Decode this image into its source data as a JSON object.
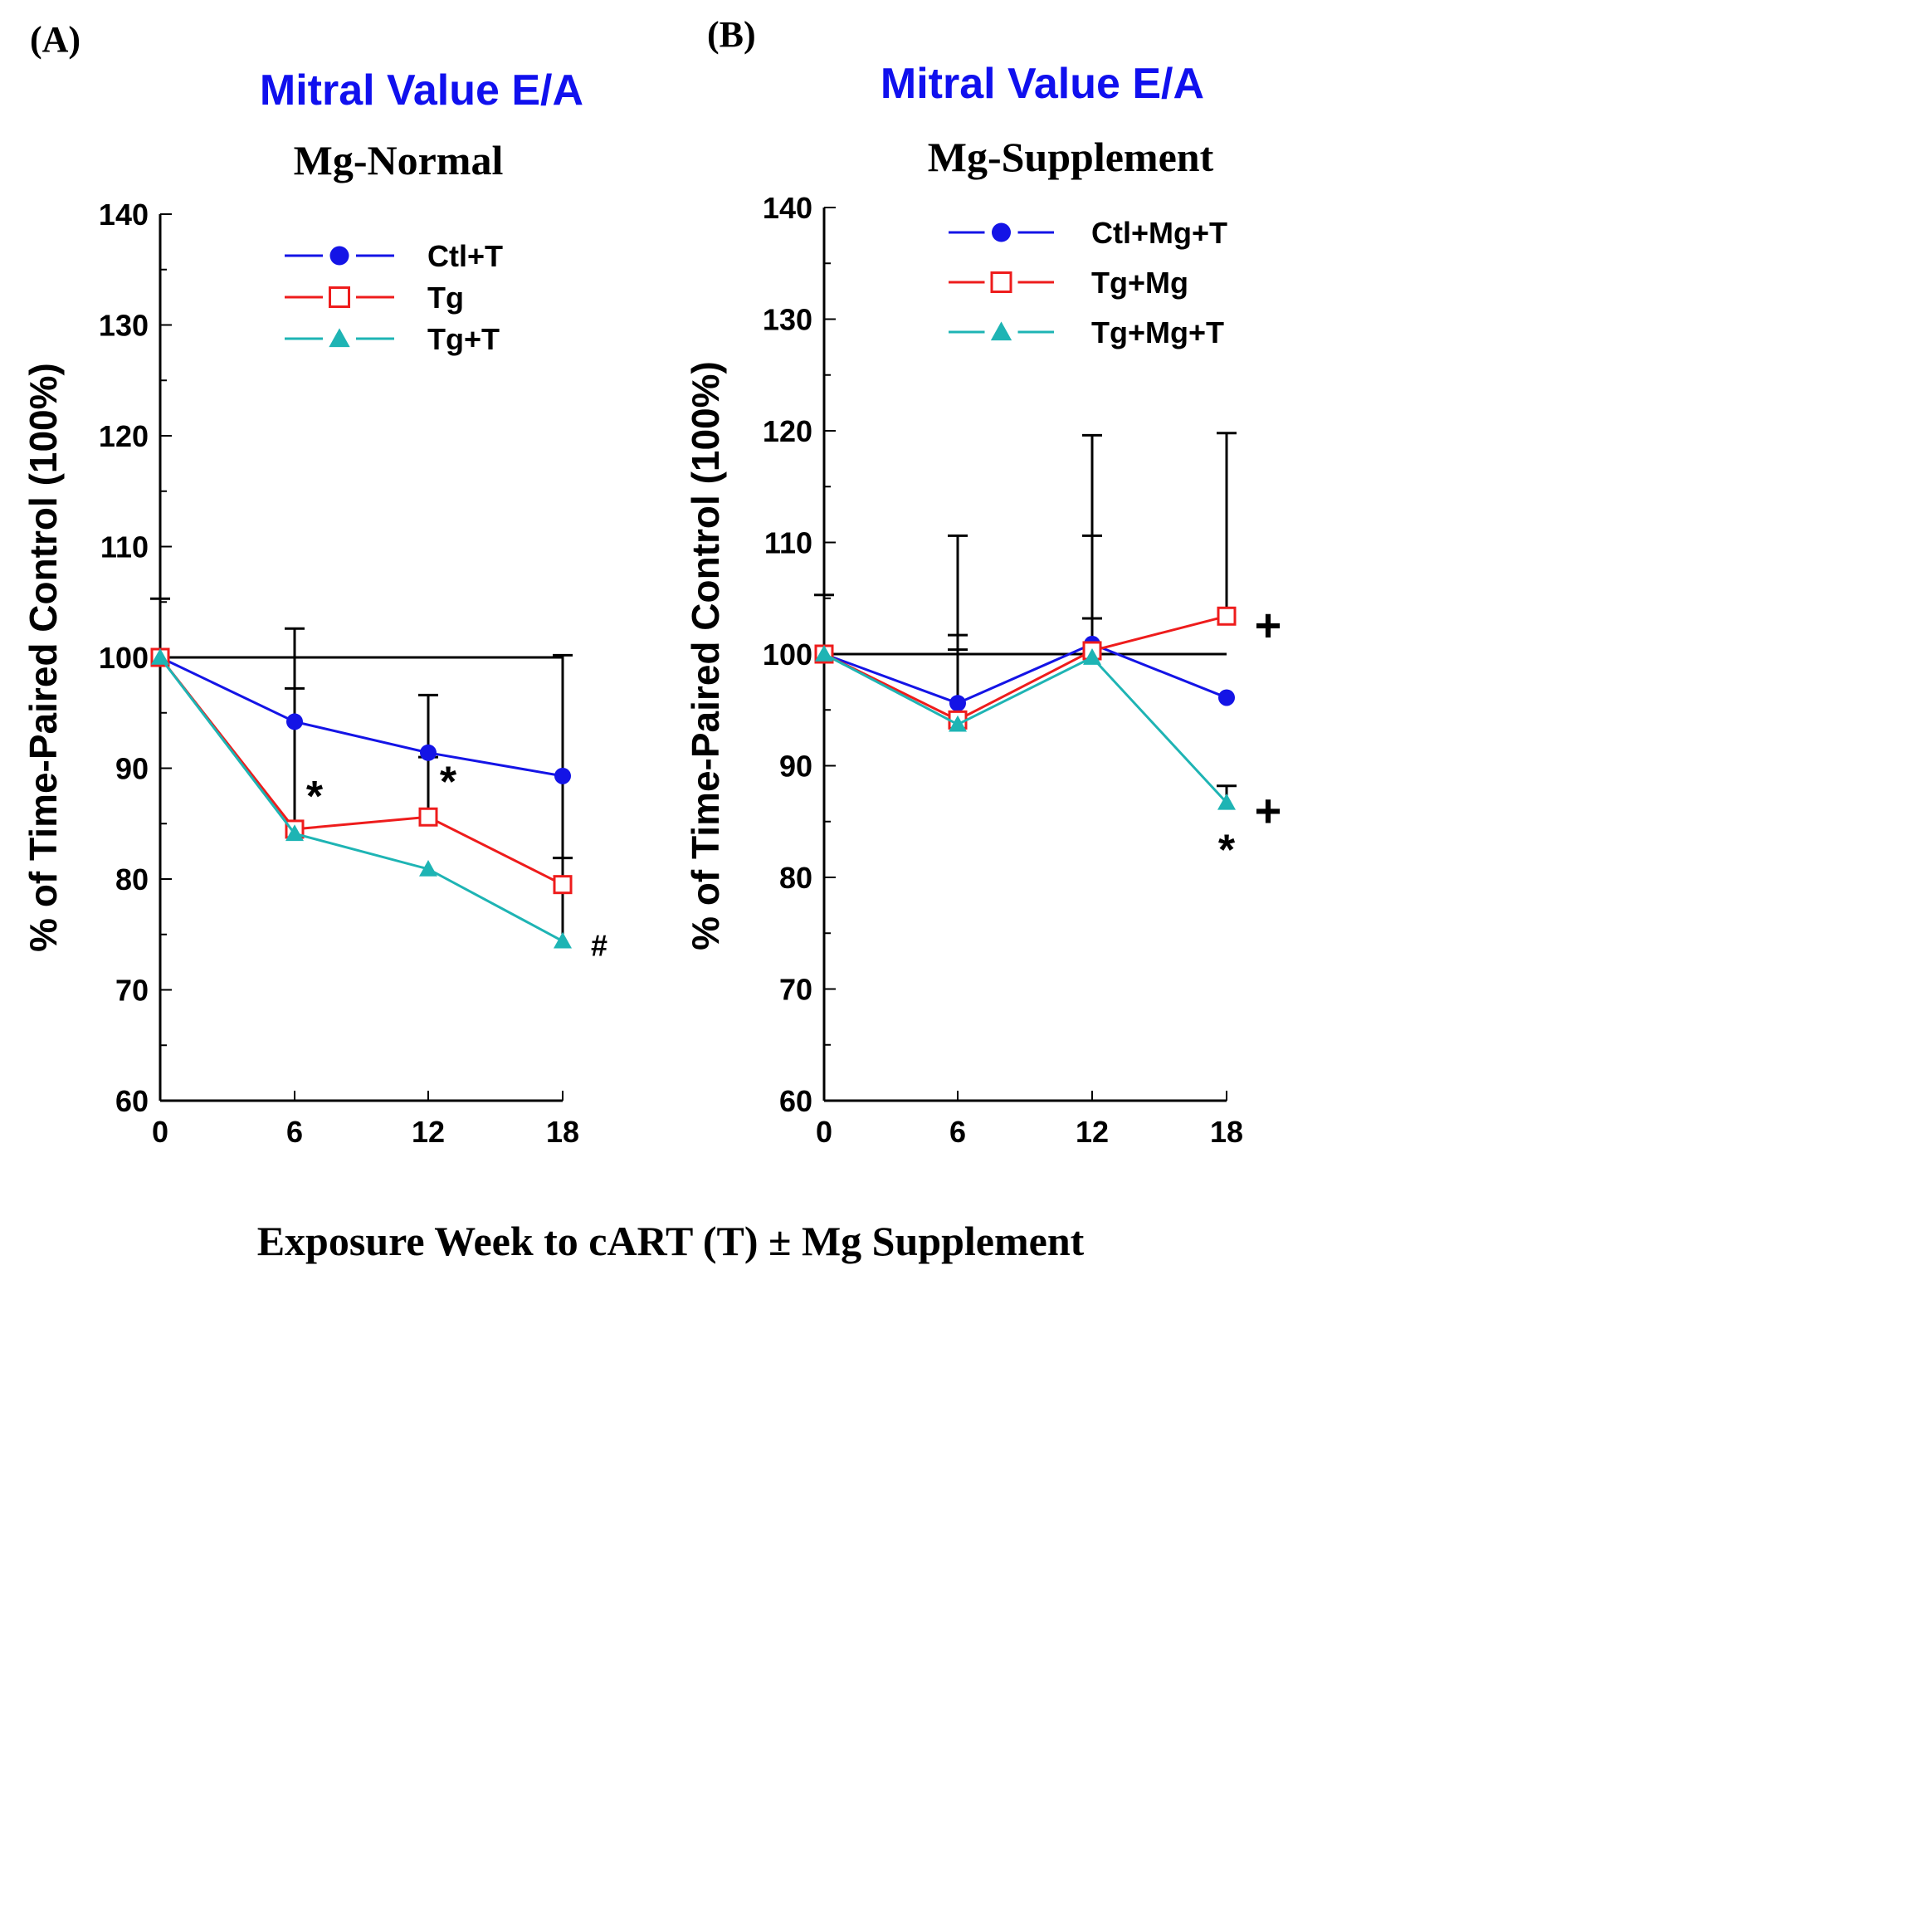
{
  "figure": {
    "shared_xlabel": "Exposure Week to cART (T) ± Mg Supplement"
  },
  "colors": {
    "blue": "#1414e6",
    "red": "#ee1c1c",
    "teal": "#1eb4b4",
    "black": "#000000"
  },
  "chart_data": [
    {
      "panel_label": "(A)",
      "type": "line",
      "title": "Mitral Value E/A",
      "subtitle": "Mg-Normal",
      "xlabel": "",
      "ylabel": "% of Time-Paired Control (100%)",
      "x": [
        0,
        6,
        12,
        18
      ],
      "x_ticks": [
        "0",
        "6",
        "12",
        "18"
      ],
      "y_ticks": [
        "60",
        "70",
        "80",
        "90",
        "100",
        "110",
        "120",
        "130",
        "140"
      ],
      "ylim": [
        60,
        140
      ],
      "reference_line": 100,
      "legend_position": "top-right",
      "series": [
        {
          "name": "Ctl+T",
          "color": "blue",
          "marker": "circle",
          "values": [
            100,
            94.2,
            91.4,
            89.3
          ],
          "error_upper": [
            105.3,
            102.6,
            96.6,
            null
          ]
        },
        {
          "name": "Tg",
          "color": "red",
          "marker": "square-open",
          "values": [
            100,
            84.5,
            85.6,
            79.5
          ],
          "error_upper": [
            null,
            97.2,
            91.0,
            100.2
          ]
        },
        {
          "name": "Tg+T",
          "color": "teal",
          "marker": "triangle",
          "values": [
            100,
            84.1,
            80.9,
            74.4
          ],
          "error_upper": [
            null,
            null,
            null,
            81.9
          ]
        }
      ],
      "annotations": [
        {
          "text": "*",
          "x": 6,
          "y": 87.5,
          "size": 52
        },
        {
          "text": "*",
          "x": 12,
          "y": 88.8,
          "size": 52
        },
        {
          "text": "#",
          "x": 18,
          "y": 74.0,
          "size": 36
        }
      ]
    },
    {
      "panel_label": "(B)",
      "type": "line",
      "title": "Mitral Value E/A",
      "subtitle": "Mg-Supplement",
      "xlabel": "",
      "ylabel": "% of Time-Paired Control (100%)",
      "x": [
        0,
        6,
        12,
        18
      ],
      "x_ticks": [
        "0",
        "6",
        "12",
        "18"
      ],
      "y_ticks": [
        "60",
        "70",
        "80",
        "90",
        "100",
        "110",
        "120",
        "130",
        "140"
      ],
      "ylim": [
        60,
        140
      ],
      "reference_line": 100,
      "legend_position": "top-right",
      "series": [
        {
          "name": "Ctl+Mg+T",
          "color": "blue",
          "marker": "circle",
          "values": [
            100,
            95.6,
            100.9,
            96.1
          ],
          "error_upper": [
            105.3,
            101.7,
            110.6,
            null
          ]
        },
        {
          "name": "Tg+Mg",
          "color": "red",
          "marker": "square-open",
          "values": [
            100,
            94.1,
            100.3,
            103.4
          ],
          "error_upper": [
            null,
            110.6,
            119.6,
            119.8
          ]
        },
        {
          "name": "Tg+Mg+T",
          "color": "teal",
          "marker": "triangle",
          "values": [
            100,
            93.7,
            99.7,
            86.7
          ],
          "error_upper": [
            null,
            100.4,
            103.2,
            88.2
          ]
        }
      ],
      "annotations": [
        {
          "text": "+",
          "x": 18,
          "y": 102.6,
          "size": 56
        },
        {
          "text": "+",
          "x": 18,
          "y": 86.0,
          "size": 56
        },
        {
          "text": "*",
          "x": 18,
          "y": 82.5,
          "size": 52
        }
      ]
    }
  ]
}
